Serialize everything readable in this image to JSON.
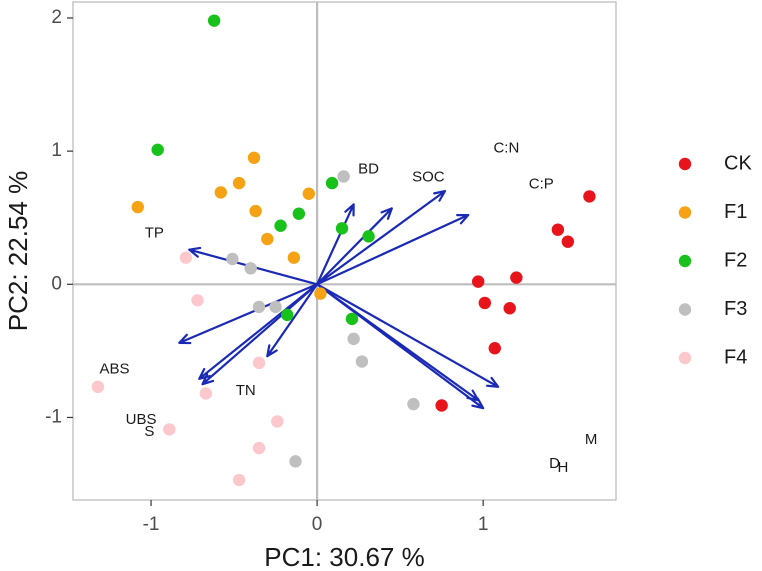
{
  "chart_data": {
    "type": "scatter",
    "title": "",
    "xlabel": "PC1: 30.67 %",
    "ylabel": "PC2: 22.54 %",
    "xlim": [
      -1.47,
      1.8
    ],
    "ylim": [
      -1.62,
      2.12
    ],
    "x_ticks": [
      -1,
      0,
      1
    ],
    "x_tick_labels": [
      "-1",
      "0",
      "1"
    ],
    "y_ticks": [
      -1,
      0,
      1,
      2
    ],
    "y_tick_labels": [
      "-1",
      "0",
      "1",
      "2"
    ],
    "reference_lines": {
      "x": 0,
      "y": 0
    },
    "legend_position": "right",
    "colors": {
      "CK": "#e8141c",
      "F1": "#f5a214",
      "F2": "#19c21a",
      "F3": "#bfbfbf",
      "F4": "#fcc8cc",
      "arrow": "#1a2ab5",
      "axis": "#bdbdbd"
    },
    "series": [
      {
        "name": "CK",
        "points": [
          [
            1.64,
            0.66
          ],
          [
            1.45,
            0.41
          ],
          [
            1.51,
            0.32
          ],
          [
            1.2,
            0.05
          ],
          [
            0.97,
            0.02
          ],
          [
            1.01,
            -0.14
          ],
          [
            1.16,
            -0.18
          ],
          [
            1.07,
            -0.48
          ],
          [
            0.75,
            -0.91
          ]
        ]
      },
      {
        "name": "F1",
        "points": [
          [
            -1.08,
            0.58
          ],
          [
            -0.38,
            0.95
          ],
          [
            -0.47,
            0.76
          ],
          [
            -0.58,
            0.69
          ],
          [
            -0.37,
            0.55
          ],
          [
            -0.3,
            0.34
          ],
          [
            -0.14,
            0.2
          ],
          [
            -0.05,
            0.68
          ],
          [
            0.02,
            -0.07
          ]
        ]
      },
      {
        "name": "F2",
        "points": [
          [
            -0.62,
            1.98
          ],
          [
            -0.96,
            1.01
          ],
          [
            0.09,
            0.76
          ],
          [
            -0.11,
            0.53
          ],
          [
            -0.22,
            0.44
          ],
          [
            0.15,
            0.42
          ],
          [
            0.31,
            0.36
          ],
          [
            -0.18,
            -0.23
          ],
          [
            0.21,
            -0.26
          ]
        ]
      },
      {
        "name": "F3",
        "points": [
          [
            0.16,
            0.81
          ],
          [
            -0.51,
            0.19
          ],
          [
            -0.4,
            0.12
          ],
          [
            -0.25,
            -0.17
          ],
          [
            -0.35,
            -0.17
          ],
          [
            0.22,
            -0.41
          ],
          [
            0.27,
            -0.58
          ],
          [
            0.58,
            -0.9
          ],
          [
            -0.13,
            -1.33
          ]
        ]
      },
      {
        "name": "F4",
        "points": [
          [
            -0.79,
            0.2
          ],
          [
            -0.72,
            -0.12
          ],
          [
            -0.35,
            -0.59
          ],
          [
            -0.67,
            -0.82
          ],
          [
            -1.32,
            -0.77
          ],
          [
            -0.89,
            -1.09
          ],
          [
            -0.24,
            -1.03
          ],
          [
            -0.35,
            -1.23
          ],
          [
            -0.47,
            -1.47
          ]
        ]
      }
    ],
    "loadings": [
      {
        "name": "BD",
        "x": 0.22,
        "y": 0.6,
        "label_x": 0.31,
        "label_y": 0.86
      },
      {
        "name": "SOC",
        "x": 0.45,
        "y": 0.57,
        "label_x": 0.67,
        "label_y": 0.8
      },
      {
        "name": "C:N",
        "x": 0.77,
        "y": 0.7,
        "label_x": 1.14,
        "label_y": 1.02
      },
      {
        "name": "C:P",
        "x": 0.91,
        "y": 0.52,
        "label_x": 1.35,
        "label_y": 0.75
      },
      {
        "name": "TP",
        "x": -0.77,
        "y": 0.26,
        "label_x": -0.98,
        "label_y": 0.38
      },
      {
        "name": "M",
        "x": 1.09,
        "y": -0.77,
        "label_x": 1.65,
        "label_y": -1.17
      },
      {
        "name": "D",
        "x": 1.0,
        "y": -0.93,
        "label_x": 1.43,
        "label_y": -1.35
      },
      {
        "name": "H",
        "x": 0.97,
        "y": -0.87,
        "label_x": 1.48,
        "label_y": -1.38
      },
      {
        "name": "ABS",
        "x": -0.83,
        "y": -0.44,
        "label_x": -1.22,
        "label_y": -0.64
      },
      {
        "name": "UBS",
        "x": -0.71,
        "y": -0.71,
        "label_x": -1.06,
        "label_y": -1.02
      },
      {
        "name": "S",
        "x": -0.69,
        "y": -0.75,
        "label_x": -1.01,
        "label_y": -1.11
      },
      {
        "name": "TN",
        "x": -0.3,
        "y": -0.54,
        "label_x": -0.43,
        "label_y": -0.8
      }
    ]
  }
}
